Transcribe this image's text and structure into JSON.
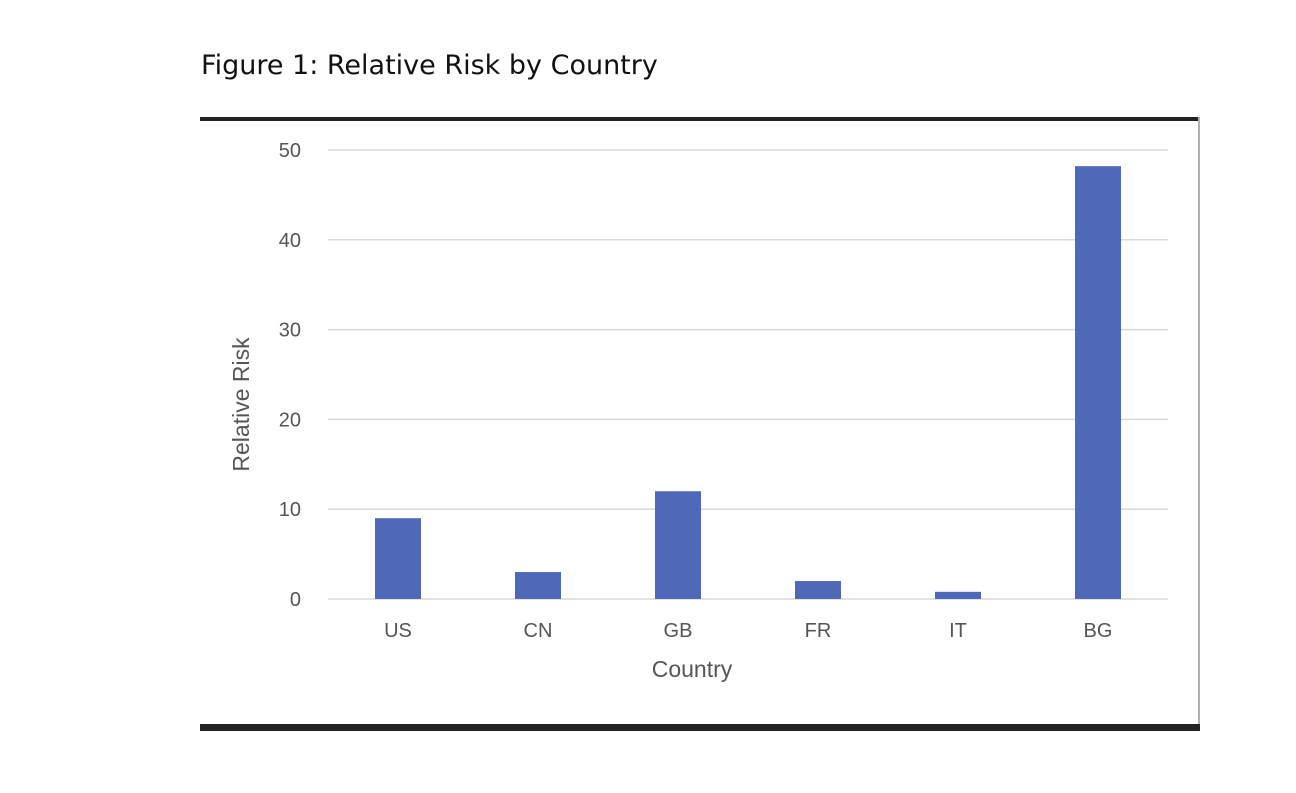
{
  "figure": {
    "title": "Figure 1: Relative Risk by Country"
  },
  "chart_data": {
    "type": "bar",
    "categories": [
      "US",
      "CN",
      "GB",
      "FR",
      "IT",
      "BG"
    ],
    "values": [
      9,
      3,
      12,
      2,
      0.8,
      48.2
    ],
    "xlabel": "Country",
    "ylabel": "Relative Risk",
    "ylim": [
      0,
      50
    ],
    "yticks": [
      0,
      10,
      20,
      30,
      40,
      50
    ],
    "grid": true,
    "legend": "none",
    "bar_color": "#5068b8",
    "grid_color": "#d9d9d9"
  }
}
